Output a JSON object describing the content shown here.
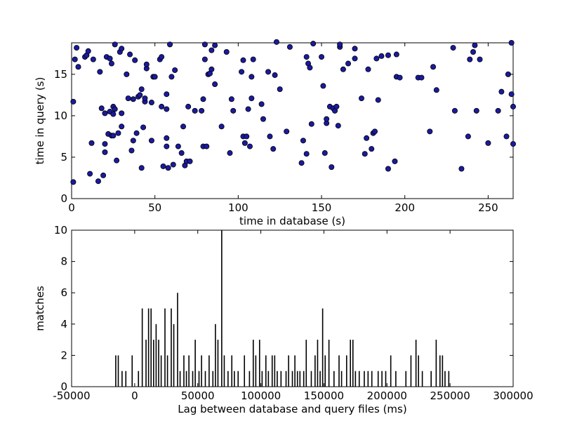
{
  "chart_data": [
    {
      "type": "scatter",
      "title": "",
      "xlabel": "time in database (s)",
      "ylabel": "time in query (s)",
      "xlim": [
        0,
        265
      ],
      "ylim": [
        0,
        18.8
      ],
      "xticks": [
        0,
        50,
        100,
        150,
        200,
        250
      ],
      "yticks": [
        0,
        5,
        10,
        15
      ],
      "grid": false,
      "marker_color": "#1a1aa0",
      "marker_edge": "#000000",
      "points": [
        [
          1,
          2.0
        ],
        [
          1,
          11.7
        ],
        [
          2,
          16.8
        ],
        [
          3,
          18.2
        ],
        [
          4,
          15.9
        ],
        [
          8,
          17.1
        ],
        [
          9,
          17.3
        ],
        [
          10,
          17.8
        ],
        [
          11,
          3.0
        ],
        [
          12,
          6.7
        ],
        [
          13,
          16.8
        ],
        [
          16,
          2.1
        ],
        [
          17,
          15.3
        ],
        [
          18,
          10.9
        ],
        [
          19,
          2.8
        ],
        [
          20,
          5.6
        ],
        [
          20,
          6.6
        ],
        [
          20,
          10.3
        ],
        [
          21,
          17.1
        ],
        [
          22,
          7.8
        ],
        [
          23,
          10.5
        ],
        [
          23,
          16.9
        ],
        [
          24,
          7.6
        ],
        [
          24,
          16.3
        ],
        [
          25,
          7.6
        ],
        [
          25,
          10.2
        ],
        [
          25,
          11.1
        ],
        [
          26,
          10.8
        ],
        [
          26,
          18.6
        ],
        [
          27,
          4.6
        ],
        [
          28,
          7.9
        ],
        [
          29,
          17.7
        ],
        [
          30,
          18.1
        ],
        [
          30,
          8.7
        ],
        [
          30,
          10.3
        ],
        [
          33,
          15.0
        ],
        [
          34,
          12.1
        ],
        [
          35,
          17.4
        ],
        [
          36,
          5.8
        ],
        [
          37,
          7.0
        ],
        [
          37,
          12.0
        ],
        [
          38,
          16.7
        ],
        [
          39,
          7.9
        ],
        [
          40,
          12.3
        ],
        [
          41,
          12.5
        ],
        [
          42,
          3.7
        ],
        [
          42,
          13.2
        ],
        [
          43,
          8.6
        ],
        [
          44,
          11.7
        ],
        [
          44,
          12.1
        ],
        [
          45,
          15.7
        ],
        [
          45,
          16.2
        ],
        [
          48,
          7.0
        ],
        [
          48,
          11.6
        ],
        [
          49,
          14.7
        ],
        [
          50,
          14.7
        ],
        [
          53,
          16.8
        ],
        [
          54,
          11.1
        ],
        [
          54,
          17.1
        ],
        [
          55,
          3.9
        ],
        [
          57,
          6.3
        ],
        [
          57,
          7.3
        ],
        [
          57,
          10.8
        ],
        [
          57,
          12.6
        ],
        [
          58,
          3.7
        ],
        [
          59,
          18.6
        ],
        [
          60,
          14.7
        ],
        [
          61,
          4.1
        ],
        [
          62,
          15.5
        ],
        [
          64,
          6.3
        ],
        [
          66,
          5.5
        ],
        [
          67,
          8.7
        ],
        [
          68,
          4.0
        ],
        [
          69,
          4.5
        ],
        [
          70,
          11.1
        ],
        [
          71,
          4.5
        ],
        [
          74,
          10.6
        ],
        [
          78,
          10.6
        ],
        [
          79,
          6.3
        ],
        [
          79,
          12.0
        ],
        [
          80,
          16.8
        ],
        [
          80,
          18.6
        ],
        [
          81,
          6.3
        ],
        [
          82,
          15.0
        ],
        [
          83,
          15.1
        ],
        [
          84,
          15.6
        ],
        [
          84,
          17.9
        ],
        [
          86,
          18.5
        ],
        [
          86,
          13.8
        ],
        [
          90,
          8.7
        ],
        [
          93,
          17.7
        ],
        [
          95,
          5.5
        ],
        [
          96,
          12.0
        ],
        [
          97,
          10.6
        ],
        [
          102,
          15.3
        ],
        [
          103,
          7.5
        ],
        [
          103,
          16.7
        ],
        [
          104,
          6.7
        ],
        [
          105,
          7.5
        ],
        [
          106,
          10.8
        ],
        [
          107,
          6.3
        ],
        [
          108,
          12.1
        ],
        [
          108,
          14.7
        ],
        [
          109,
          16.8
        ],
        [
          114,
          11.4
        ],
        [
          115,
          9.6
        ],
        [
          118,
          15.3
        ],
        [
          119,
          7.5
        ],
        [
          121,
          6.0
        ],
        [
          122,
          14.9
        ],
        [
          123,
          18.9
        ],
        [
          125,
          13.2
        ],
        [
          129,
          8.1
        ],
        [
          131,
          18.3
        ],
        [
          138,
          4.3
        ],
        [
          139,
          7.0
        ],
        [
          141,
          5.4
        ],
        [
          141,
          17.1
        ],
        [
          142,
          16.3
        ],
        [
          143,
          15.8
        ],
        [
          144,
          9.0
        ],
        [
          145,
          18.7
        ],
        [
          150,
          17.1
        ],
        [
          151,
          13.6
        ],
        [
          152,
          5.5
        ],
        [
          153,
          9.1
        ],
        [
          153,
          9.6
        ],
        [
          155,
          11.1
        ],
        [
          156,
          3.8
        ],
        [
          157,
          10.9
        ],
        [
          158,
          10.6
        ],
        [
          159,
          11.1
        ],
        [
          160,
          8.8
        ],
        [
          161,
          18.3
        ],
        [
          161,
          18.6
        ],
        [
          163,
          15.6
        ],
        [
          166,
          16.3
        ],
        [
          170,
          16.9
        ],
        [
          170,
          18.1
        ],
        [
          174,
          12.1
        ],
        [
          176,
          5.4
        ],
        [
          177,
          7.3
        ],
        [
          178,
          15.6
        ],
        [
          180,
          6.0
        ],
        [
          181,
          7.9
        ],
        [
          182,
          8.1
        ],
        [
          183,
          16.9
        ],
        [
          184,
          11.9
        ],
        [
          186,
          17.2
        ],
        [
          190,
          17.3
        ],
        [
          190,
          3.6
        ],
        [
          194,
          4.5
        ],
        [
          195,
          14.7
        ],
        [
          195,
          17.4
        ],
        [
          197,
          14.6
        ],
        [
          208,
          14.6
        ],
        [
          210,
          14.6
        ],
        [
          215,
          8.1
        ],
        [
          217,
          15.9
        ],
        [
          219,
          13.1
        ],
        [
          229,
          18.2
        ],
        [
          230,
          10.6
        ],
        [
          238,
          7.5
        ],
        [
          239,
          16.8
        ],
        [
          241,
          17.7
        ],
        [
          242,
          18.5
        ],
        [
          243,
          10.6
        ],
        [
          245,
          16.8
        ],
        [
          250,
          6.7
        ],
        [
          256,
          10.6
        ],
        [
          258,
          12.9
        ],
        [
          261,
          7.5
        ],
        [
          262,
          15.0
        ],
        [
          264,
          18.8
        ],
        [
          264,
          12.6
        ],
        [
          265,
          11.1
        ],
        [
          265,
          6.6
        ],
        [
          234,
          3.6
        ]
      ]
    },
    {
      "type": "bar",
      "title": "",
      "xlabel": "Lag between database and query files (ms)",
      "ylabel": "matches",
      "xlim": [
        -50000,
        300000
      ],
      "ylim": [
        0,
        10
      ],
      "xticks": [
        -50000,
        0,
        50000,
        100000,
        150000,
        200000,
        250000,
        300000
      ],
      "yticks": [
        0,
        2,
        4,
        6,
        8,
        10
      ],
      "grid": false,
      "bar_color": "#000000",
      "bars": [
        [
          -15000,
          2
        ],
        [
          -13000,
          2
        ],
        [
          -10000,
          1
        ],
        [
          -7000,
          1
        ],
        [
          -2000,
          2
        ],
        [
          3000,
          1
        ],
        [
          6000,
          5
        ],
        [
          9000,
          3
        ],
        [
          11000,
          5
        ],
        [
          13000,
          5
        ],
        [
          15000,
          3
        ],
        [
          17000,
          4
        ],
        [
          19000,
          3
        ],
        [
          21000,
          2
        ],
        [
          24000,
          5
        ],
        [
          26000,
          2
        ],
        [
          29000,
          5
        ],
        [
          31000,
          4
        ],
        [
          34000,
          6
        ],
        [
          36000,
          1
        ],
        [
          39000,
          2
        ],
        [
          41000,
          1
        ],
        [
          43000,
          2
        ],
        [
          46000,
          1
        ],
        [
          48000,
          3
        ],
        [
          51000,
          1
        ],
        [
          53000,
          2
        ],
        [
          56000,
          1
        ],
        [
          59000,
          2
        ],
        [
          62000,
          1
        ],
        [
          64000,
          4
        ],
        [
          66000,
          3
        ],
        [
          69000,
          10
        ],
        [
          71000,
          2
        ],
        [
          74000,
          1
        ],
        [
          77000,
          2
        ],
        [
          79000,
          1
        ],
        [
          82000,
          1
        ],
        [
          87000,
          2
        ],
        [
          91000,
          1
        ],
        [
          94000,
          3
        ],
        [
          96000,
          2
        ],
        [
          99000,
          3
        ],
        [
          101000,
          1
        ],
        [
          104000,
          2
        ],
        [
          106000,
          1
        ],
        [
          109000,
          2
        ],
        [
          111000,
          2
        ],
        [
          113000,
          1
        ],
        [
          116000,
          1
        ],
        [
          120000,
          1
        ],
        [
          122000,
          2
        ],
        [
          125000,
          1
        ],
        [
          127000,
          2
        ],
        [
          129000,
          1
        ],
        [
          131000,
          1
        ],
        [
          134000,
          1
        ],
        [
          136000,
          3
        ],
        [
          140000,
          1
        ],
        [
          143000,
          2
        ],
        [
          145000,
          3
        ],
        [
          147000,
          1
        ],
        [
          149000,
          5
        ],
        [
          151000,
          2
        ],
        [
          154000,
          3
        ],
        [
          158000,
          1
        ],
        [
          162000,
          2
        ],
        [
          164000,
          1
        ],
        [
          168000,
          2
        ],
        [
          171000,
          3
        ],
        [
          173000,
          3
        ],
        [
          175000,
          1
        ],
        [
          178000,
          1
        ],
        [
          182000,
          1
        ],
        [
          185000,
          1
        ],
        [
          188000,
          1
        ],
        [
          193000,
          1
        ],
        [
          196000,
          1
        ],
        [
          199000,
          1
        ],
        [
          203000,
          2
        ],
        [
          207000,
          1
        ],
        [
          215000,
          1
        ],
        [
          219000,
          2
        ],
        [
          223000,
          3
        ],
        [
          225000,
          2
        ],
        [
          228000,
          1
        ],
        [
          235000,
          1
        ],
        [
          239000,
          3
        ],
        [
          242000,
          2
        ],
        [
          244000,
          2
        ],
        [
          246000,
          1
        ],
        [
          249000,
          1
        ]
      ]
    }
  ]
}
